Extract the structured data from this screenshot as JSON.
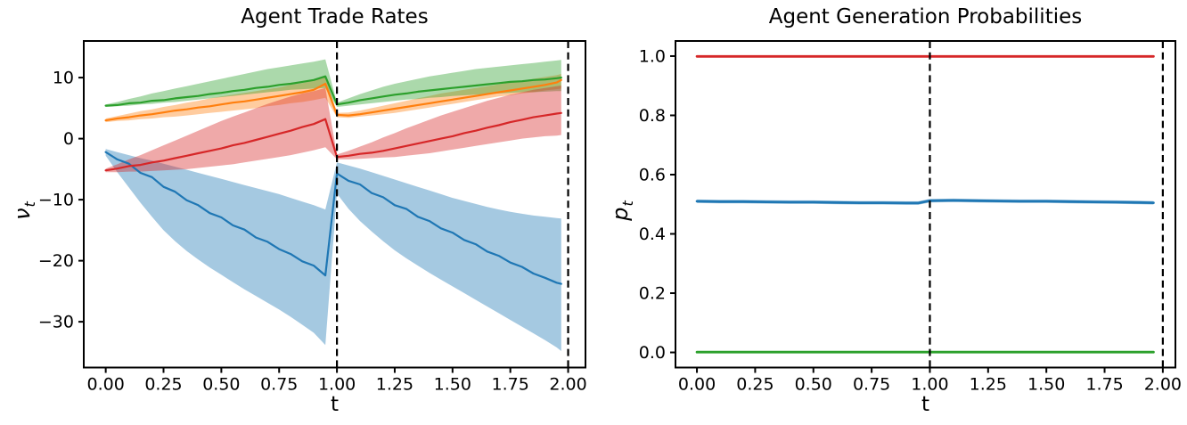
{
  "page": {
    "background": "#ffffff",
    "accent_colors": {
      "blue": "#1f77b4",
      "orange": "#ff7f0e",
      "green": "#2ca02c",
      "red": "#d62728",
      "vline": "#000000"
    }
  },
  "chart_data": [
    {
      "type": "line",
      "title": "Agent Trade Rates",
      "xlabel": "t",
      "ylabel": "ν",
      "ylabel_sub": "t",
      "xlim": [
        -0.095,
        2.075
      ],
      "ylim": [
        -37.5,
        16
      ],
      "xticks": [
        0.0,
        0.25,
        0.5,
        0.75,
        1.0,
        1.25,
        1.5,
        1.75,
        2.0
      ],
      "xtick_labels": [
        "0.00",
        "0.25",
        "0.50",
        "0.75",
        "1.00",
        "1.25",
        "1.50",
        "1.75",
        "2.00"
      ],
      "yticks": [
        10,
        0,
        -10,
        -20,
        -30
      ],
      "ytick_labels": [
        "10",
        "0",
        "−10",
        "−20",
        "−30"
      ],
      "grid": false,
      "legend": null,
      "vlines": {
        "positions": [
          1.0,
          2.0
        ],
        "style": "dashed",
        "color": "#000000"
      },
      "band_opacity": 0.4,
      "t": [
        0,
        0.05,
        0.1,
        0.15,
        0.2,
        0.25,
        0.3,
        0.35,
        0.4,
        0.45,
        0.5,
        0.55,
        0.6,
        0.65,
        0.7,
        0.75,
        0.8,
        0.85,
        0.9,
        0.95,
        1.0,
        1.05,
        1.1,
        1.15,
        1.2,
        1.25,
        1.3,
        1.35,
        1.4,
        1.45,
        1.5,
        1.55,
        1.6,
        1.65,
        1.7,
        1.75,
        1.8,
        1.85,
        1.9,
        1.95,
        1.97
      ],
      "series": [
        {
          "name": "blue-agent",
          "color": "#1f77b4",
          "values": [
            -2.2,
            -3.4,
            -4.1,
            -5.6,
            -6.3,
            -7.9,
            -8.7,
            -10.1,
            -10.9,
            -12.2,
            -12.9,
            -14.2,
            -14.9,
            -16.2,
            -16.9,
            -18.1,
            -18.9,
            -20.1,
            -20.8,
            -22.4,
            -5.7,
            -6.9,
            -7.5,
            -8.9,
            -9.6,
            -10.9,
            -11.5,
            -12.8,
            -13.5,
            -14.7,
            -15.4,
            -16.6,
            -17.3,
            -18.5,
            -19.2,
            -20.3,
            -21.0,
            -22.1,
            -22.8,
            -23.6,
            -23.8
          ],
          "band_hi": [
            -1.7,
            -2.2,
            -2.7,
            -3.2,
            -3.6,
            -4.1,
            -4.6,
            -5.1,
            -5.6,
            -6.1,
            -6.6,
            -7.1,
            -7.6,
            -8.1,
            -8.6,
            -9.1,
            -9.7,
            -10.3,
            -10.9,
            -11.6,
            -3.9,
            -4.4,
            -4.9,
            -5.5,
            -6.1,
            -6.7,
            -7.3,
            -7.9,
            -8.5,
            -9.1,
            -9.7,
            -10.2,
            -10.7,
            -11.2,
            -11.6,
            -12.0,
            -12.3,
            -12.6,
            -12.8,
            -13.0,
            -13.1
          ],
          "band_lo": [
            -2.8,
            -5.5,
            -8.0,
            -10.5,
            -12.8,
            -15.0,
            -16.8,
            -18.4,
            -19.8,
            -21.1,
            -22.3,
            -23.5,
            -24.7,
            -25.8,
            -26.9,
            -28.0,
            -29.2,
            -30.5,
            -31.8,
            -33.8,
            -9.0,
            -11.5,
            -13.5,
            -15.2,
            -16.8,
            -18.3,
            -19.6,
            -20.8,
            -22.0,
            -23.1,
            -24.2,
            -25.3,
            -26.4,
            -27.5,
            -28.6,
            -29.7,
            -30.8,
            -31.9,
            -33.0,
            -34.2,
            -34.8
          ]
        },
        {
          "name": "orange-agent",
          "color": "#ff7f0e",
          "values": [
            3.0,
            3.3,
            3.5,
            3.8,
            4.0,
            4.3,
            4.6,
            4.8,
            5.1,
            5.3,
            5.6,
            5.9,
            6.1,
            6.4,
            6.7,
            7.0,
            7.3,
            7.6,
            8.0,
            9.0,
            3.9,
            3.8,
            4.0,
            4.3,
            4.6,
            4.9,
            5.2,
            5.5,
            5.8,
            6.1,
            6.4,
            6.7,
            7.0,
            7.3,
            7.6,
            7.9,
            8.2,
            8.5,
            8.8,
            9.2,
            9.6
          ],
          "band_hi": [
            3.3,
            3.7,
            4.1,
            4.5,
            4.8,
            5.2,
            5.5,
            5.9,
            6.2,
            6.6,
            6.9,
            7.2,
            7.5,
            7.8,
            8.1,
            8.4,
            8.8,
            9.1,
            9.5,
            10.2,
            4.2,
            4.3,
            4.6,
            5.0,
            5.4,
            5.8,
            6.2,
            6.6,
            7.0,
            7.4,
            7.7,
            8.0,
            8.3,
            8.6,
            8.9,
            9.2,
            9.5,
            9.8,
            10.1,
            10.4,
            10.6
          ],
          "band_lo": [
            2.7,
            2.9,
            3.0,
            3.2,
            3.3,
            3.5,
            3.6,
            3.8,
            4.0,
            4.2,
            4.4,
            4.6,
            4.8,
            5.0,
            5.3,
            5.5,
            5.8,
            6.0,
            6.3,
            6.7,
            3.5,
            3.4,
            3.6,
            3.8,
            4.0,
            4.2,
            4.5,
            4.8,
            5.1,
            5.4,
            5.7,
            6.0,
            6.3,
            6.6,
            6.9,
            7.1,
            7.4,
            7.6,
            7.9,
            8.1,
            8.2
          ]
        },
        {
          "name": "green-agent",
          "color": "#2ca02c",
          "values": [
            5.4,
            5.5,
            5.8,
            5.9,
            6.2,
            6.3,
            6.6,
            6.8,
            7.0,
            7.3,
            7.5,
            7.8,
            8.0,
            8.3,
            8.5,
            8.8,
            9.0,
            9.3,
            9.6,
            10.2,
            5.6,
            5.9,
            6.3,
            6.6,
            6.9,
            7.2,
            7.4,
            7.7,
            7.9,
            8.1,
            8.3,
            8.5,
            8.7,
            8.9,
            9.1,
            9.3,
            9.4,
            9.6,
            9.7,
            9.9,
            10.0
          ],
          "band_hi": [
            5.6,
            6.0,
            6.5,
            6.9,
            7.4,
            7.8,
            8.2,
            8.6,
            9.0,
            9.4,
            9.8,
            10.2,
            10.6,
            11.0,
            11.4,
            11.7,
            12.0,
            12.3,
            12.6,
            13.0,
            5.9,
            6.6,
            7.3,
            7.9,
            8.5,
            9.0,
            9.4,
            9.8,
            10.2,
            10.5,
            10.8,
            11.1,
            11.4,
            11.6,
            11.8,
            12.0,
            12.2,
            12.4,
            12.6,
            12.8,
            12.9
          ],
          "band_lo": [
            5.2,
            5.3,
            5.4,
            5.6,
            5.7,
            5.9,
            6.0,
            6.2,
            6.4,
            6.6,
            6.8,
            7.0,
            7.2,
            7.4,
            7.6,
            7.8,
            8.0,
            8.1,
            8.2,
            8.3,
            5.2,
            5.4,
            5.6,
            5.8,
            6.0,
            6.2,
            6.4,
            6.5,
            6.7,
            6.8,
            7.0,
            7.1,
            7.2,
            7.3,
            7.4,
            7.5,
            7.6,
            7.6,
            7.7,
            7.8,
            7.8
          ]
        },
        {
          "name": "red-agent",
          "color": "#d62728",
          "values": [
            -5.2,
            -4.9,
            -4.5,
            -4.3,
            -3.9,
            -3.6,
            -3.2,
            -2.8,
            -2.4,
            -2.0,
            -1.6,
            -1.1,
            -0.7,
            -0.2,
            0.3,
            0.8,
            1.3,
            1.9,
            2.4,
            3.2,
            -3.0,
            -2.8,
            -2.5,
            -2.3,
            -2.0,
            -1.6,
            -1.2,
            -0.8,
            -0.4,
            0.0,
            0.4,
            0.9,
            1.3,
            1.8,
            2.2,
            2.7,
            3.1,
            3.5,
            3.8,
            4.1,
            4.2
          ],
          "band_hi": [
            -4.9,
            -4.2,
            -3.4,
            -2.7,
            -1.9,
            -1.1,
            -0.3,
            0.5,
            1.3,
            2.1,
            2.9,
            3.6,
            4.3,
            5.0,
            5.7,
            6.3,
            6.9,
            7.4,
            7.8,
            8.3,
            -2.6,
            -2.0,
            -1.3,
            -0.6,
            0.2,
            0.9,
            1.7,
            2.4,
            3.1,
            3.8,
            4.4,
            5.0,
            5.6,
            6.2,
            6.7,
            7.2,
            7.6,
            8.0,
            8.3,
            8.6,
            8.7
          ],
          "band_lo": [
            -5.5,
            -5.5,
            -5.4,
            -5.4,
            -5.3,
            -5.2,
            -5.1,
            -5.0,
            -4.8,
            -4.6,
            -4.4,
            -4.2,
            -3.9,
            -3.6,
            -3.3,
            -3.0,
            -2.7,
            -2.3,
            -1.9,
            -1.4,
            -3.4,
            -3.4,
            -3.3,
            -3.2,
            -3.1,
            -3.0,
            -2.8,
            -2.6,
            -2.4,
            -2.1,
            -1.8,
            -1.5,
            -1.2,
            -0.9,
            -0.6,
            -0.3,
            0.0,
            0.2,
            0.4,
            0.5,
            0.6
          ]
        }
      ]
    },
    {
      "type": "line",
      "title": "Agent Generation Probabilities",
      "xlabel": "t",
      "ylabel": "p",
      "ylabel_sub": "t",
      "xlim": [
        -0.092,
        2.054
      ],
      "ylim": [
        -0.051,
        1.051
      ],
      "xticks": [
        0.0,
        0.25,
        0.5,
        0.75,
        1.0,
        1.25,
        1.5,
        1.75,
        2.0
      ],
      "xtick_labels": [
        "0.00",
        "0.25",
        "0.50",
        "0.75",
        "1.00",
        "1.25",
        "1.50",
        "1.75",
        "2.00"
      ],
      "yticks": [
        1.0,
        0.8,
        0.6,
        0.4,
        0.2,
        0.0
      ],
      "ytick_labels": [
        "1.0",
        "0.8",
        "0.6",
        "0.4",
        "0.2",
        "0.0"
      ],
      "grid": false,
      "legend": null,
      "vlines": {
        "positions": [
          1.0,
          2.0
        ],
        "style": "dashed",
        "color": "#000000"
      },
      "band_opacity": 0.4,
      "t": [
        0,
        0.1,
        0.2,
        0.3,
        0.4,
        0.5,
        0.6,
        0.7,
        0.8,
        0.9,
        0.95,
        1.0,
        1.1,
        1.2,
        1.3,
        1.4,
        1.5,
        1.6,
        1.7,
        1.8,
        1.9,
        1.96
      ],
      "series": [
        {
          "name": "green-agent",
          "color": "#2ca02c",
          "values": [
            0.001,
            0.001,
            0.001,
            0.001,
            0.001,
            0.001,
            0.001,
            0.001,
            0.001,
            0.001,
            0.001,
            0.001,
            0.001,
            0.001,
            0.001,
            0.001,
            0.001,
            0.001,
            0.001,
            0.001,
            0.001,
            0.001
          ]
        },
        {
          "name": "blue-agent",
          "color": "#1f77b4",
          "values": [
            0.51,
            0.509,
            0.509,
            0.508,
            0.507,
            0.507,
            0.506,
            0.505,
            0.505,
            0.504,
            0.504,
            0.512,
            0.513,
            0.512,
            0.511,
            0.51,
            0.51,
            0.509,
            0.508,
            0.507,
            0.506,
            0.505
          ],
          "band_hi": [
            0.516,
            0.515,
            0.515,
            0.514,
            0.513,
            0.513,
            0.512,
            0.511,
            0.511,
            0.51,
            0.51,
            0.518,
            0.519,
            0.518,
            0.517,
            0.516,
            0.516,
            0.515,
            0.514,
            0.513,
            0.512,
            0.511
          ],
          "band_lo": [
            0.504,
            0.503,
            0.503,
            0.502,
            0.501,
            0.501,
            0.5,
            0.499,
            0.499,
            0.498,
            0.498,
            0.506,
            0.507,
            0.506,
            0.505,
            0.504,
            0.504,
            0.503,
            0.502,
            0.501,
            0.5,
            0.499
          ]
        },
        {
          "name": "red-agent",
          "color": "#d62728",
          "values": [
            0.999,
            0.999,
            0.999,
            0.999,
            0.999,
            0.999,
            0.999,
            0.999,
            0.999,
            0.999,
            0.999,
            0.999,
            0.999,
            0.999,
            0.999,
            0.999,
            0.999,
            0.999,
            0.999,
            0.999,
            0.999,
            0.999
          ]
        }
      ]
    }
  ]
}
